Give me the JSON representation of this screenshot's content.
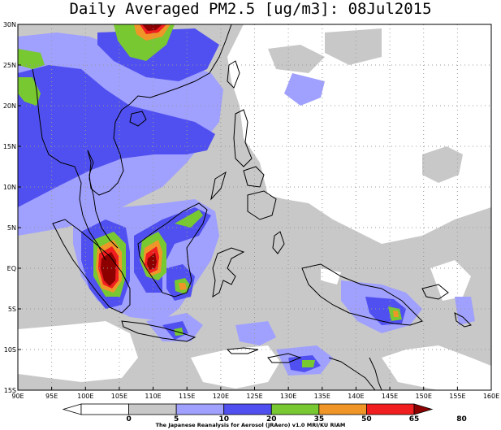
{
  "title": "Daily Averaged PM2.5 [ug/m3]: 08Jul2015",
  "credit": "The Japanese Reanalysis for Aerosol (JRAero) v1.0 MRI/KU RIAM",
  "map": {
    "lon_range": [
      90,
      160
    ],
    "lat_range": [
      -15,
      30
    ],
    "lon_ticks": [
      "90E",
      "95E",
      "100E",
      "105E",
      "110E",
      "115E",
      "120E",
      "125E",
      "130E",
      "135E",
      "140E",
      "145E",
      "150E",
      "155E",
      "160E"
    ],
    "lat_ticks": [
      "30N",
      "25N",
      "20N",
      "15N",
      "10N",
      "5N",
      "EQ",
      "5S",
      "10S",
      "15S"
    ],
    "grid": true
  },
  "legend": {
    "levels": [
      "0",
      "5",
      "10",
      "20",
      "35",
      "50",
      "65",
      "80"
    ],
    "colors": [
      "#ffffff",
      "#ffffff",
      "#c8c8c8",
      "#a0a0ff",
      "#5050f0",
      "#78c832",
      "#f09628",
      "#f01e1e",
      "#8c0000"
    ]
  },
  "colors": {
    "white": "#ffffff",
    "gray": "#c8c8c8",
    "lightblue": "#a0a0ff",
    "blue": "#5050f0",
    "green": "#78c832",
    "orange": "#f09628",
    "red": "#f01e1e",
    "darkred": "#8c0000"
  }
}
